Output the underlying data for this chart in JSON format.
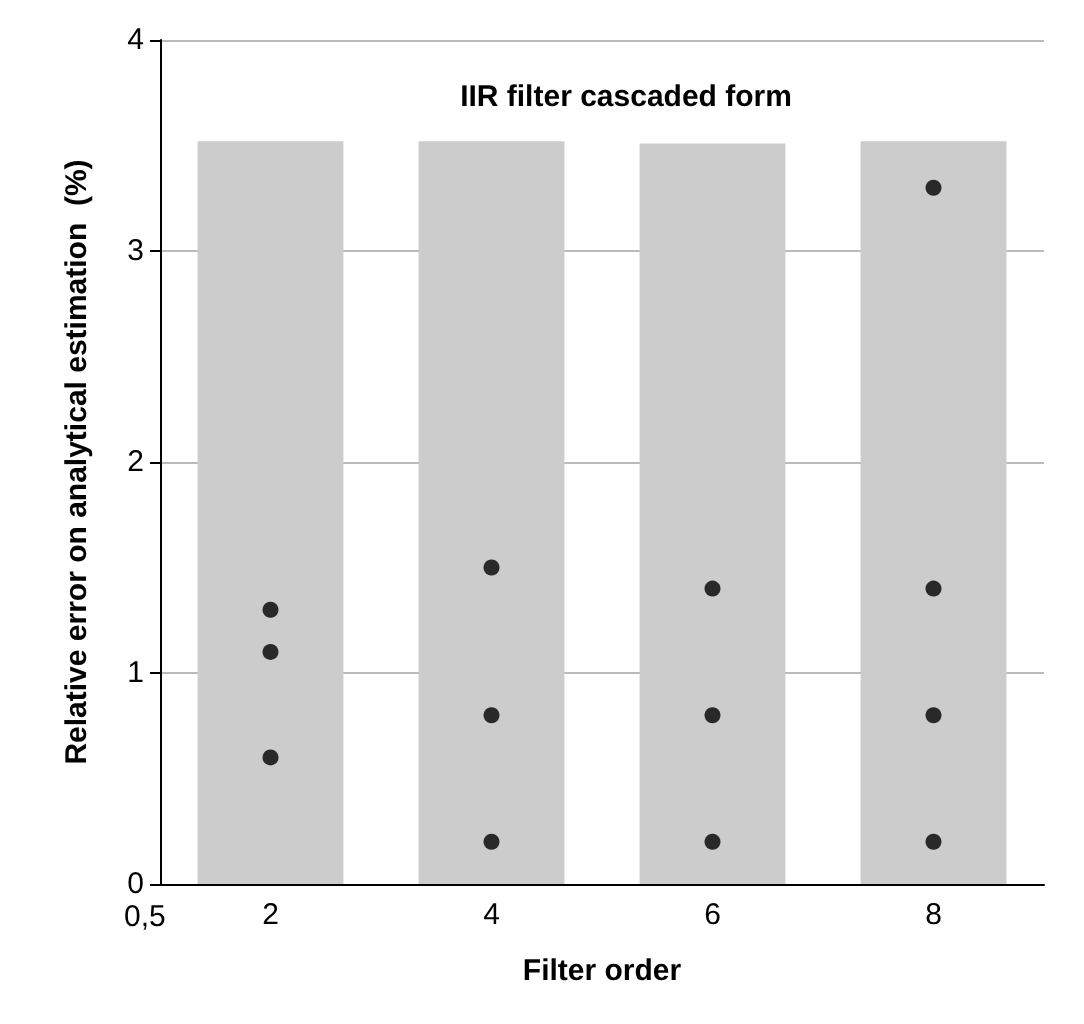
{
  "chart_data": {
    "type": "scatter",
    "title": "IIR filter cascaded form",
    "xlabel": "Filter order",
    "ylabel": "Relative error on analytical estimation  (%)",
    "categories": [
      "2",
      "4",
      "6",
      "8"
    ],
    "series": [
      {
        "type": "bar",
        "color": "#cccccc",
        "values": [
          3.52,
          3.52,
          3.51,
          3.52
        ]
      },
      {
        "color": "#000000",
        "x": [
          "2",
          "2",
          "2",
          "4",
          "4",
          "4",
          "6",
          "6",
          "6",
          "8",
          "8",
          "8",
          "8"
        ],
        "values": [
          1.3,
          1.1,
          0.6,
          1.5,
          0.8,
          0.2,
          1.4,
          0.8,
          0.2,
          3.3,
          1.4,
          0.8,
          0.2
        ]
      }
    ],
    "ylim": [
      0,
      4
    ],
    "yticks": [
      0,
      1,
      2,
      3,
      4
    ],
    "grid": "y",
    "marker": "circle",
    "annotations": [
      "0,5"
    ]
  }
}
